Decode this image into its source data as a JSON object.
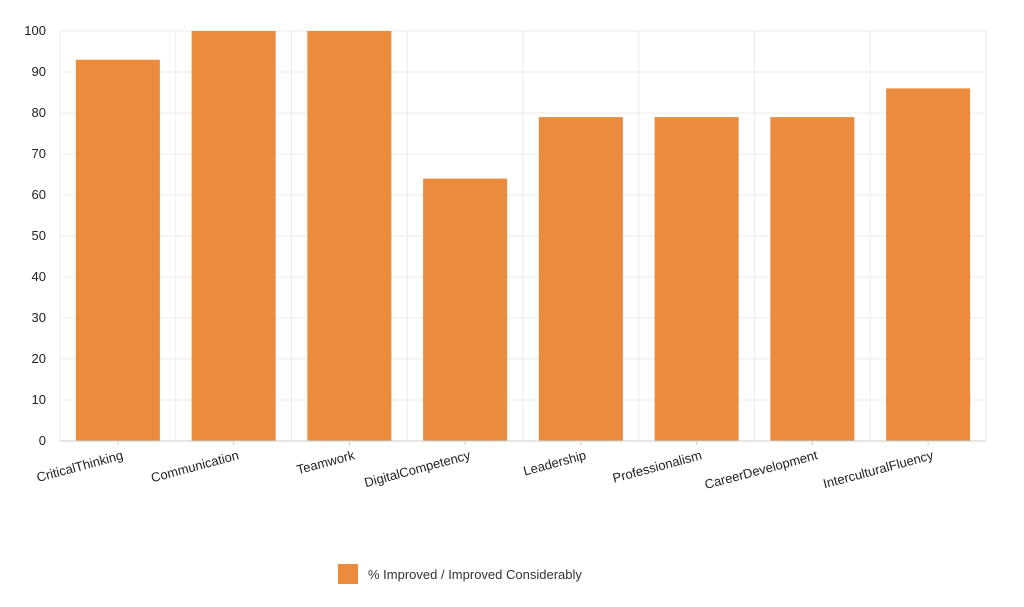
{
  "chart_data": {
    "type": "bar",
    "categories": [
      "CriticalThinking",
      "Communication",
      "Teamwork",
      "DigitalCompetency",
      "Leadership",
      "Professionalism",
      "CareerDevelopment",
      "InterculturalFluency"
    ],
    "series": [
      {
        "name": "% Improved / Improved Considerably",
        "values": [
          93,
          100,
          100,
          64,
          79,
          79,
          79,
          86
        ]
      }
    ],
    "ylim": [
      0,
      100
    ],
    "yticks": [
      0,
      10,
      20,
      30,
      40,
      50,
      60,
      70,
      80,
      90,
      100
    ],
    "grid": true,
    "legend_position": "bottom",
    "colors": {
      "bar": "#EA8B3E",
      "grid": "#ebebeb",
      "axis": "#cccccc"
    }
  }
}
